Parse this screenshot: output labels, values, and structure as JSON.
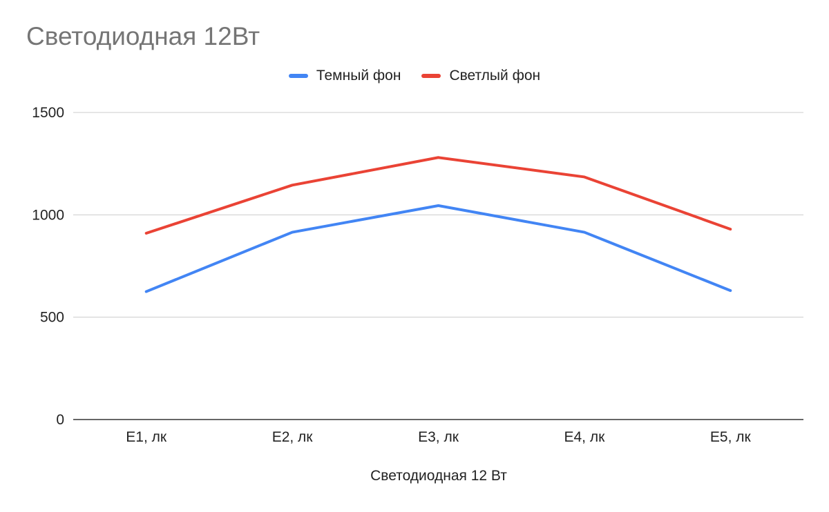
{
  "chart_data": {
    "type": "line",
    "title": "Светодиодная 12Вт",
    "xlabel": "Светодиодная 12 Вт",
    "ylabel": "",
    "categories": [
      "E1, лк",
      "E2, лк",
      "E3, лк",
      "E4, лк",
      "E5, лк"
    ],
    "ylim": [
      0,
      1500
    ],
    "yticks": [
      0,
      500,
      1000,
      1500
    ],
    "grid": true,
    "legend_position": "top",
    "series": [
      {
        "name": "Темный фон",
        "color": "#4285F4",
        "values": [
          625,
          915,
          1045,
          915,
          630
        ]
      },
      {
        "name": "Светлый фон",
        "color": "#EA4335",
        "values": [
          910,
          1145,
          1280,
          1185,
          930
        ]
      }
    ]
  }
}
